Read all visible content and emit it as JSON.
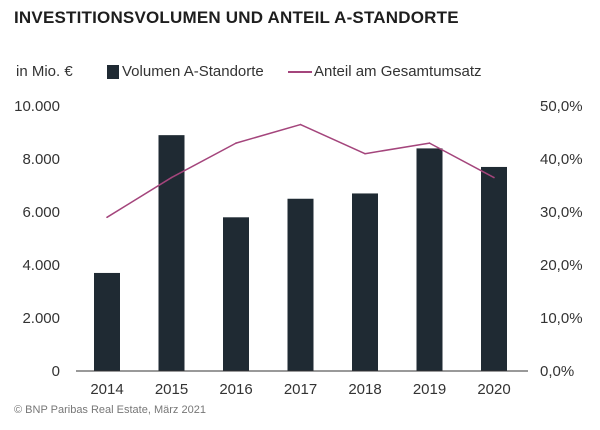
{
  "title": "INVESTITIONSVOLUMEN UND ANTEIL A-STANDORTE",
  "unit_label": "in Mio. €",
  "source": "© BNP Paribas Real Estate, März 2021",
  "colors": {
    "bar": "#1f2a33",
    "line": "#a4457c",
    "axis": "#333333"
  },
  "chart_data": {
    "type": "bar",
    "title": "INVESTITIONSVOLUMEN UND ANTEIL A-STANDORTE",
    "categories": [
      "2014",
      "2015",
      "2016",
      "2017",
      "2018",
      "2019",
      "2020"
    ],
    "series": [
      {
        "name": "Volumen A-Standorte",
        "type": "bar",
        "axis": "left",
        "values": [
          3700,
          8900,
          5800,
          6500,
          6700,
          8400,
          7700
        ]
      },
      {
        "name": "Anteil am Gesamtumsatz",
        "type": "line",
        "axis": "right",
        "values": [
          29,
          36.5,
          43,
          46.5,
          41,
          43,
          36.5
        ]
      }
    ],
    "ylabel": "in Mio. €",
    "ylim": [
      0,
      10000
    ],
    "y_ticks": [
      "0",
      "2.000",
      "4.000",
      "6.000",
      "8.000",
      "10.000"
    ],
    "y2lim": [
      0,
      50
    ],
    "y2_ticks": [
      "0,0%",
      "10,0%",
      "20,0%",
      "30,0%",
      "40,0%",
      "50,0%"
    ],
    "legend": [
      "Volumen A-Standorte",
      "Anteil am Gesamtumsatz"
    ],
    "legend_position": "top",
    "grid": false
  }
}
